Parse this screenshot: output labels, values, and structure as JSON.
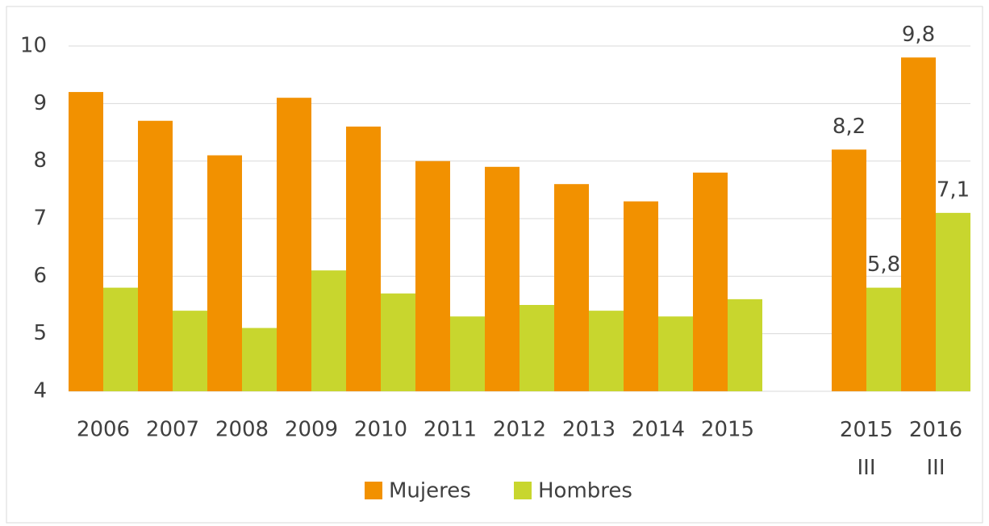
{
  "chart_data": {
    "type": "bar",
    "categories": [
      "2006",
      "2007",
      "2008",
      "2009",
      "2010",
      "2011",
      "2012",
      "2013",
      "2014",
      "2015",
      null,
      "2015\nIII",
      "2016\nIII"
    ],
    "series": [
      {
        "name": "Mujeres",
        "color": "#f29100",
        "values": [
          9.2,
          8.7,
          8.1,
          9.1,
          8.6,
          8.0,
          7.9,
          7.6,
          7.3,
          7.8,
          null,
          8.2,
          9.8
        ],
        "value_labels": [
          null,
          null,
          null,
          null,
          null,
          null,
          null,
          null,
          null,
          null,
          null,
          "8,2",
          "9,8"
        ]
      },
      {
        "name": "Hombres",
        "color": "#c8d62e",
        "values": [
          5.8,
          5.4,
          5.1,
          6.1,
          5.7,
          5.3,
          5.5,
          5.4,
          5.3,
          5.6,
          null,
          5.8,
          7.1
        ],
        "value_labels": [
          null,
          null,
          null,
          null,
          null,
          null,
          null,
          null,
          null,
          null,
          null,
          "5,8",
          "7,1"
        ]
      }
    ],
    "ylim": [
      4,
      10
    ],
    "yticks": [
      4,
      5,
      6,
      7,
      8,
      9,
      10
    ],
    "grid": true,
    "legend": "bottom"
  }
}
